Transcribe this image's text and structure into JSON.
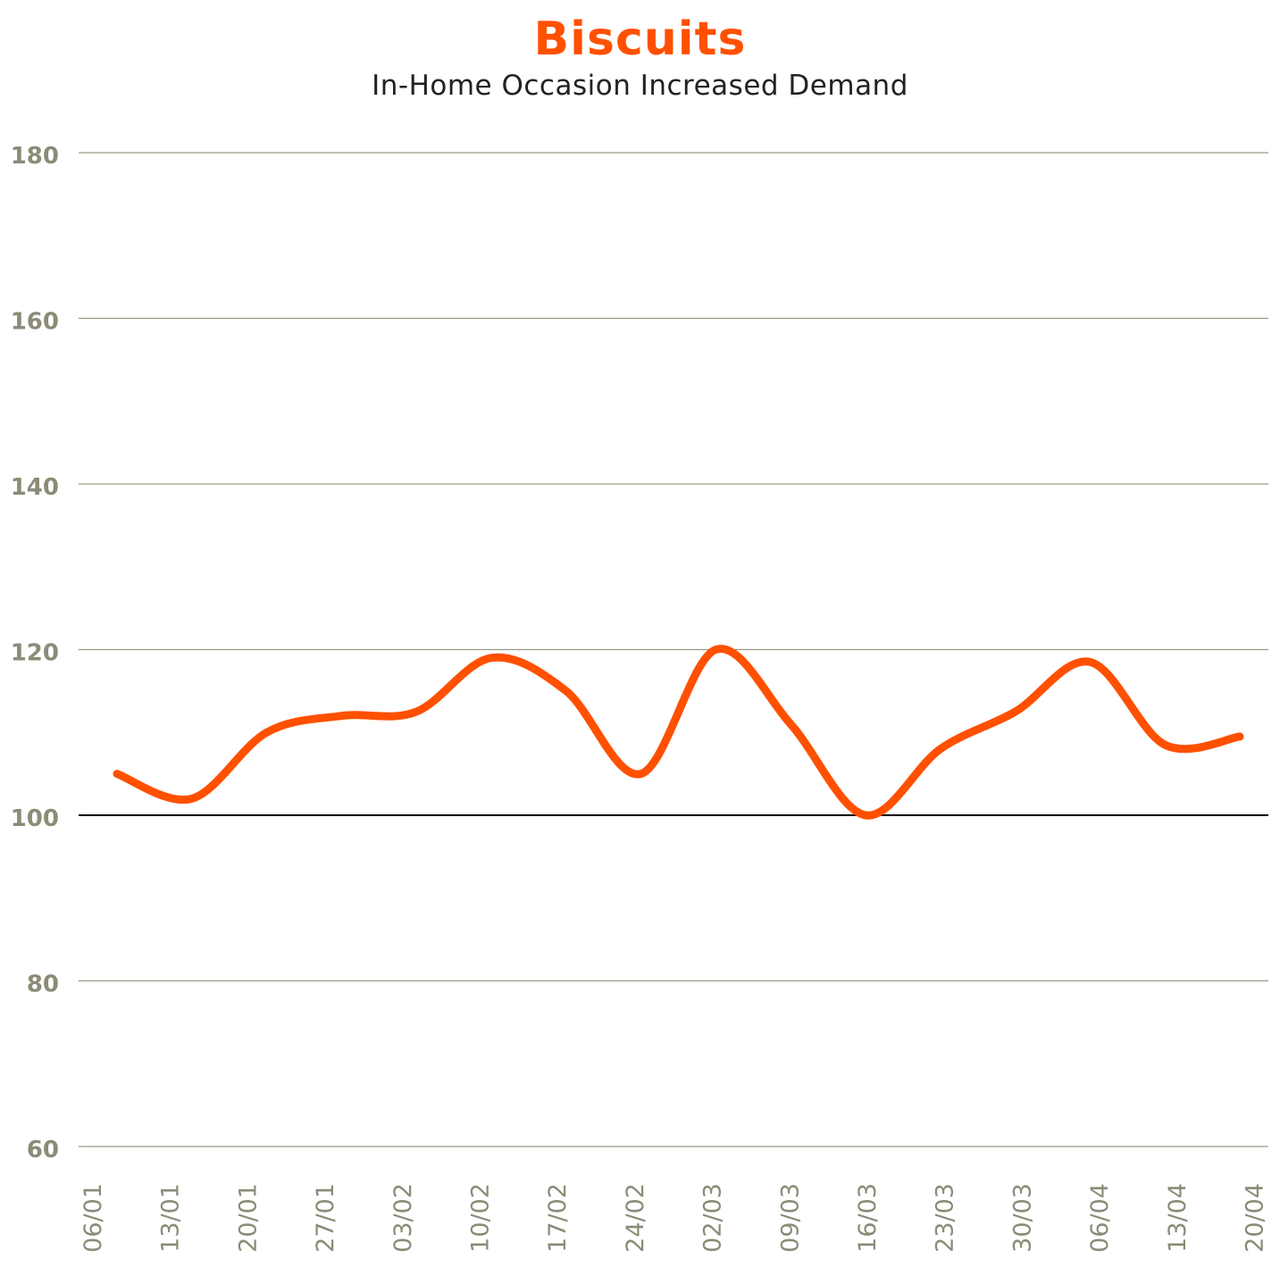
{
  "chart_data": {
    "type": "line",
    "title": "Biscuits",
    "subtitle": "In-Home Occasion Increased Demand",
    "xlabel": "",
    "ylabel": "",
    "ylim": [
      60,
      180
    ],
    "yticks": [
      60,
      80,
      100,
      120,
      140,
      160,
      180
    ],
    "baseline": 100,
    "categories": [
      "06/01",
      "13/01",
      "20/01",
      "27/01",
      "03/02",
      "10/02",
      "17/02",
      "24/02",
      "02/03",
      "09/03",
      "16/03",
      "23/03",
      "30/03",
      "06/04",
      "13/04",
      "20/04"
    ],
    "series": [
      {
        "values": [
          105,
          102,
          110,
          112,
          112.5,
          119,
          115,
          105,
          120,
          111,
          100,
          108,
          112.5,
          118.5,
          108.5,
          109.5
        ]
      }
    ],
    "grid": true,
    "colors": {
      "line": "#ff5000",
      "title": "#ff5000",
      "grid": "#9a9a86",
      "baseline": "#000000",
      "ticks": "#8b8b77"
    }
  }
}
